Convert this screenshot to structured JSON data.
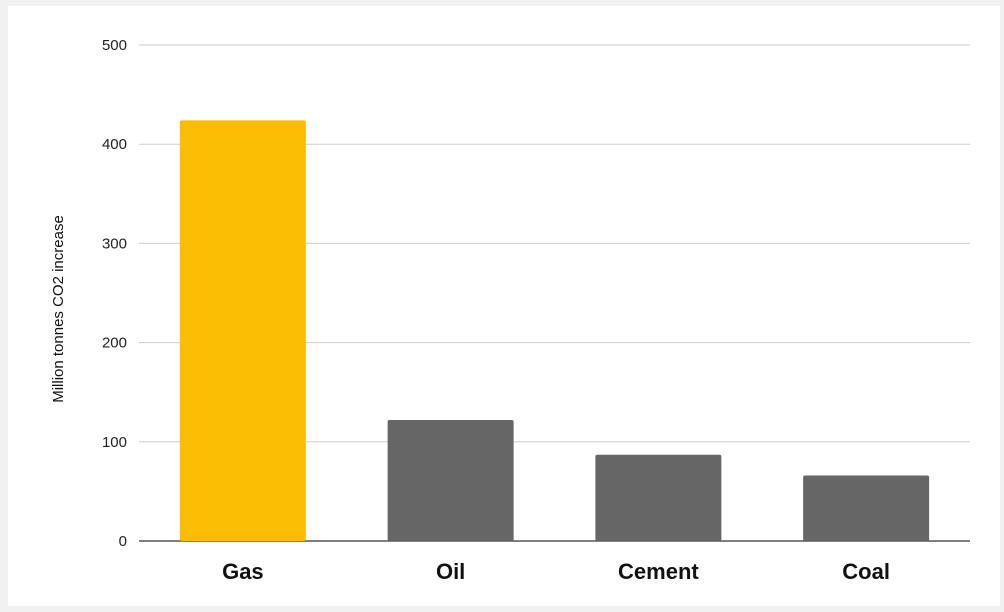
{
  "chart_data": {
    "type": "bar",
    "categories": [
      "Gas",
      "Oil",
      "Cement",
      "Coal"
    ],
    "values": [
      424,
      122,
      87,
      66
    ],
    "bar_colors": [
      "#fbbc04",
      "#666666",
      "#666666",
      "#666666"
    ],
    "title": "",
    "xlabel": "",
    "ylabel": "Million tonnes CO2 increase",
    "ylim": [
      0,
      500
    ],
    "yticks": [
      0,
      100,
      200,
      300,
      400,
      500
    ],
    "grid": true,
    "gridline_color": "#cccccc",
    "baseline_color": "#333333"
  }
}
